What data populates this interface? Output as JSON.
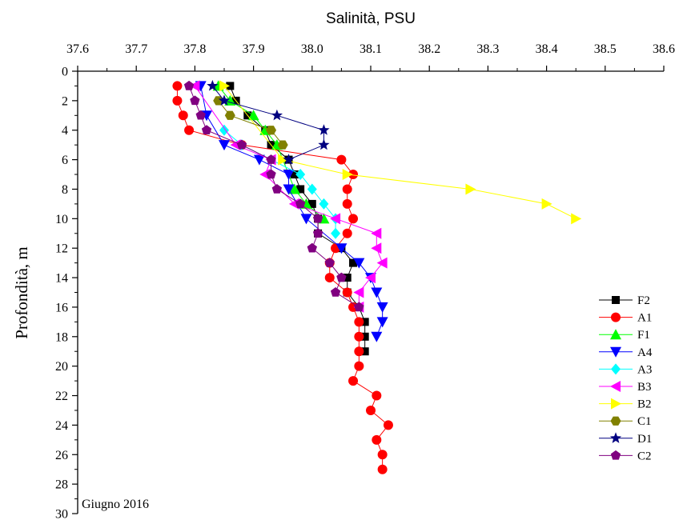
{
  "chart_data": {
    "type": "line",
    "xlabel": "Salinità, PSU",
    "ylabel": "Profondità, m",
    "xlim": [
      37.6,
      38.6
    ],
    "ylim": [
      0,
      30
    ],
    "x_axis_position": "top",
    "y_axis_inverted": true,
    "xticks": [
      "37.6",
      "37.7",
      "37.8",
      "37.9",
      "38.0",
      "38.1",
      "38.2",
      "38.3",
      "38.4",
      "38.5",
      "38.6"
    ],
    "yticks": [
      "0",
      "2",
      "4",
      "6",
      "8",
      "10",
      "12",
      "14",
      "16",
      "18",
      "20",
      "22",
      "24",
      "26",
      "28",
      "30"
    ],
    "annotation": "Giugno 2016",
    "legend_position": "bottom-right",
    "grid": false,
    "series": [
      {
        "name": "F2",
        "color": "#000000",
        "marker": "square",
        "points": [
          [
            37.86,
            1
          ],
          [
            37.87,
            2
          ],
          [
            37.89,
            3
          ],
          [
            37.92,
            4
          ],
          [
            37.93,
            5
          ],
          [
            37.96,
            6
          ],
          [
            37.97,
            7
          ],
          [
            37.98,
            8
          ],
          [
            38.0,
            9
          ],
          [
            38.01,
            10
          ],
          [
            38.01,
            11
          ],
          [
            38.05,
            12
          ],
          [
            38.07,
            13
          ],
          [
            38.06,
            14
          ],
          [
            38.06,
            15
          ],
          [
            38.08,
            16
          ],
          [
            38.09,
            17
          ],
          [
            38.09,
            18
          ],
          [
            38.09,
            19
          ]
        ]
      },
      {
        "name": "A1",
        "color": "#ff0000",
        "marker": "circle",
        "points": [
          [
            37.77,
            1
          ],
          [
            37.77,
            2
          ],
          [
            37.78,
            3
          ],
          [
            37.79,
            4
          ],
          [
            37.88,
            5
          ],
          [
            38.05,
            6
          ],
          [
            38.07,
            7
          ],
          [
            38.06,
            8
          ],
          [
            38.06,
            9
          ],
          [
            38.07,
            10
          ],
          [
            38.06,
            11
          ],
          [
            38.04,
            12
          ],
          [
            38.03,
            13
          ],
          [
            38.03,
            14
          ],
          [
            38.06,
            15
          ],
          [
            38.07,
            16
          ],
          [
            38.08,
            17
          ],
          [
            38.08,
            18
          ],
          [
            38.08,
            19
          ],
          [
            38.08,
            20
          ],
          [
            38.07,
            21
          ],
          [
            38.11,
            22
          ],
          [
            38.1,
            23
          ],
          [
            38.13,
            24
          ],
          [
            38.11,
            25
          ],
          [
            38.12,
            26
          ],
          [
            38.12,
            27
          ]
        ]
      },
      {
        "name": "F1",
        "color": "#00ff00",
        "marker": "triangle-up",
        "points": [
          [
            37.84,
            1
          ],
          [
            37.86,
            2
          ],
          [
            37.9,
            3
          ],
          [
            37.92,
            4
          ],
          [
            37.94,
            5
          ],
          [
            37.97,
            8
          ],
          [
            37.99,
            9
          ],
          [
            38.02,
            10
          ]
        ]
      },
      {
        "name": "A4",
        "color": "#0000ff",
        "marker": "triangle-down",
        "points": [
          [
            37.81,
            1
          ],
          [
            37.82,
            3
          ],
          [
            37.85,
            5
          ],
          [
            37.91,
            6
          ],
          [
            37.96,
            7
          ],
          [
            37.96,
            8
          ],
          [
            37.99,
            10
          ],
          [
            38.05,
            12
          ],
          [
            38.08,
            13
          ],
          [
            38.1,
            14
          ],
          [
            38.11,
            15
          ],
          [
            38.12,
            16
          ],
          [
            38.12,
            17
          ],
          [
            38.11,
            18
          ]
        ]
      },
      {
        "name": "A3",
        "color": "#00ffff",
        "marker": "diamond",
        "points": [
          [
            37.85,
            4
          ],
          [
            37.88,
            5
          ],
          [
            37.98,
            7
          ],
          [
            38.0,
            8
          ],
          [
            38.02,
            9
          ],
          [
            38.04,
            10
          ],
          [
            38.04,
            11
          ]
        ]
      },
      {
        "name": "B3",
        "color": "#ff00ff",
        "marker": "triangle-left",
        "points": [
          [
            37.8,
            1
          ],
          [
            37.87,
            5
          ],
          [
            37.93,
            6
          ],
          [
            37.92,
            7
          ],
          [
            37.97,
            9
          ],
          [
            38.04,
            10
          ],
          [
            38.11,
            11
          ],
          [
            38.11,
            12
          ],
          [
            38.12,
            13
          ],
          [
            38.1,
            14
          ],
          [
            38.08,
            15
          ],
          [
            38.08,
            16
          ]
        ]
      },
      {
        "name": "B2",
        "color": "#ffff00",
        "marker": "triangle-right",
        "points": [
          [
            37.85,
            1
          ],
          [
            37.95,
            6
          ],
          [
            38.06,
            7
          ],
          [
            38.27,
            8
          ],
          [
            38.4,
            9
          ],
          [
            38.45,
            10
          ]
        ]
      },
      {
        "name": "C1",
        "color": "#808000",
        "marker": "hexagon",
        "points": [
          [
            37.84,
            2
          ],
          [
            37.86,
            3
          ],
          [
            37.93,
            4
          ],
          [
            37.95,
            5
          ]
        ]
      },
      {
        "name": "D1",
        "color": "#000080",
        "marker": "star",
        "points": [
          [
            37.83,
            1
          ],
          [
            37.85,
            2
          ],
          [
            37.94,
            3
          ],
          [
            38.02,
            4
          ],
          [
            38.02,
            5
          ],
          [
            37.96,
            6
          ]
        ]
      },
      {
        "name": "C2",
        "color": "#800080",
        "marker": "pentagon",
        "points": [
          [
            37.79,
            1
          ],
          [
            37.8,
            2
          ],
          [
            37.81,
            3
          ],
          [
            37.82,
            4
          ],
          [
            37.88,
            5
          ],
          [
            37.93,
            6
          ],
          [
            37.93,
            7
          ],
          [
            37.94,
            8
          ],
          [
            37.98,
            9
          ],
          [
            38.01,
            10
          ],
          [
            38.01,
            11
          ],
          [
            38.0,
            12
          ],
          [
            38.03,
            13
          ],
          [
            38.05,
            14
          ],
          [
            38.04,
            15
          ],
          [
            38.08,
            16
          ]
        ]
      }
    ]
  }
}
